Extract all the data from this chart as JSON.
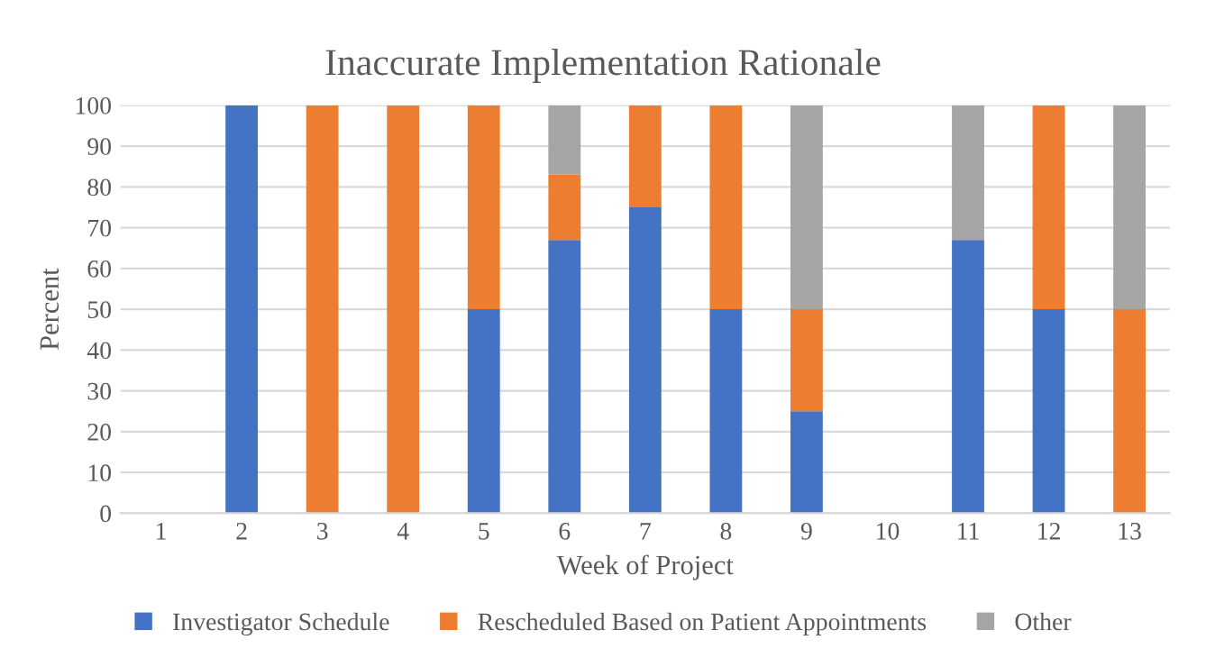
{
  "chart_data": {
    "type": "bar",
    "title": "Inaccurate Implementation Rationale",
    "xlabel": "Week of Project",
    "ylabel": "Percent",
    "categories": [
      "1",
      "2",
      "3",
      "4",
      "5",
      "6",
      "7",
      "8",
      "9",
      "10",
      "11",
      "12",
      "13"
    ],
    "stacked": true,
    "series": [
      {
        "name": "Investigator Schedule",
        "color": "#4472c4",
        "values": [
          0,
          100,
          0,
          0,
          50,
          67,
          75,
          50,
          25,
          0,
          67,
          50,
          0
        ]
      },
      {
        "name": "Rescheduled Based on Patient Appointments",
        "color": "#ed7d31",
        "values": [
          0,
          0,
          100,
          100,
          50,
          16,
          25,
          50,
          25,
          0,
          0,
          50,
          50
        ]
      },
      {
        "name": "Other",
        "color": "#a5a5a5",
        "values": [
          0,
          0,
          0,
          0,
          0,
          17,
          0,
          0,
          50,
          0,
          33,
          0,
          50
        ]
      }
    ],
    "ylim": [
      0,
      100
    ],
    "yticks": [
      0,
      10,
      20,
      30,
      40,
      50,
      60,
      70,
      80,
      90,
      100
    ],
    "grid": "y",
    "legend": "bottom"
  }
}
